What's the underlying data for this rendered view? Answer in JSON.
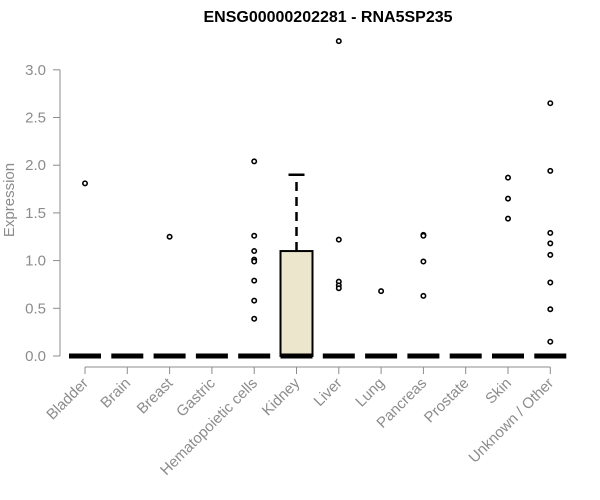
{
  "chart_data": {
    "type": "boxplot",
    "title": "ENSG00000202281 - RNA5SP235",
    "xlabel": "",
    "ylabel": "Expression",
    "ylim": [
      0,
      3.3
    ],
    "yticks": [
      0.0,
      0.5,
      1.0,
      1.5,
      2.0,
      2.5,
      3.0
    ],
    "ytick_labels": [
      "0.0",
      "0.5",
      "1.0",
      "1.5",
      "2.0",
      "2.5",
      "3.0"
    ],
    "grid": false,
    "legend": "none",
    "colors": {
      "box_fill": "#ece6cc",
      "box_stroke": "#000000",
      "axis": "#8c8c8c"
    },
    "categories": [
      "Bladder",
      "Brain",
      "Breast",
      "Gastric",
      "Hematopoietic cells",
      "Kidney",
      "Liver",
      "Lung",
      "Pancreas",
      "Prostate",
      "Skin",
      "Unknown / Other"
    ],
    "boxes": [
      {
        "q1": 0,
        "median": 0,
        "q3": 0,
        "whisker_low": 0,
        "whisker_high": 0,
        "outliers": [
          1.81
        ]
      },
      {
        "q1": 0,
        "median": 0,
        "q3": 0,
        "whisker_low": 0,
        "whisker_high": 0,
        "outliers": []
      },
      {
        "q1": 0,
        "median": 0,
        "q3": 0,
        "whisker_low": 0,
        "whisker_high": 0,
        "outliers": [
          1.25
        ]
      },
      {
        "q1": 0,
        "median": 0,
        "q3": 0,
        "whisker_low": 0,
        "whisker_high": 0,
        "outliers": []
      },
      {
        "q1": 0,
        "median": 0,
        "q3": 0,
        "whisker_low": 0,
        "whisker_high": 0,
        "outliers": [
          2.04,
          1.26,
          1.1,
          1.01,
          0.99,
          0.79,
          0.58,
          0.39
        ]
      },
      {
        "q1": 0,
        "median": 0,
        "q3": 1.1,
        "whisker_low": 0,
        "whisker_high": 1.9,
        "outliers": []
      },
      {
        "q1": 0,
        "median": 0,
        "q3": 0,
        "whisker_low": 0,
        "whisker_high": 0,
        "outliers": [
          3.3,
          1.22,
          0.78,
          0.74,
          0.71
        ]
      },
      {
        "q1": 0,
        "median": 0,
        "q3": 0,
        "whisker_low": 0,
        "whisker_high": 0,
        "outliers": [
          0.68
        ]
      },
      {
        "q1": 0,
        "median": 0,
        "q3": 0,
        "whisker_low": 0,
        "whisker_high": 0,
        "outliers": [
          1.27,
          1.26,
          0.99,
          0.63
        ]
      },
      {
        "q1": 0,
        "median": 0,
        "q3": 0,
        "whisker_low": 0,
        "whisker_high": 0,
        "outliers": []
      },
      {
        "q1": 0,
        "median": 0,
        "q3": 0,
        "whisker_low": 0,
        "whisker_high": 0,
        "outliers": [
          1.87,
          1.65,
          1.44
        ]
      },
      {
        "q1": 0,
        "median": 0,
        "q3": 0,
        "whisker_low": 0,
        "whisker_high": 0,
        "outliers": [
          2.65,
          1.94,
          1.29,
          1.18,
          1.06,
          0.77,
          0.49,
          0.15
        ]
      }
    ]
  }
}
